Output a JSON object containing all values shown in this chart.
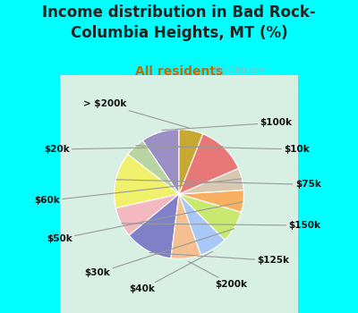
{
  "title": "Income distribution in Bad Rock-\nColumbia Heights, MT (%)",
  "subtitle": "All residents",
  "watermark": "City-Data.com",
  "bg_cyan": "#00FFFF",
  "bg_chart": "#d8efe4",
  "slices": [
    {
      "label": "$100k",
      "value": 9.5,
      "color": "#9b8ec4"
    },
    {
      "label": "$10k",
      "value": 5.0,
      "color": "#b8d4a0"
    },
    {
      "label": "$75k",
      "value": 14.0,
      "color": "#f0f06a"
    },
    {
      "label": "$150k",
      "value": 7.5,
      "color": "#f4b8c0"
    },
    {
      "label": "$125k",
      "value": 12.0,
      "color": "#8080c8"
    },
    {
      "label": "$200k",
      "value": 7.5,
      "color": "#f4c090"
    },
    {
      "label": "$40k",
      "value": 7.0,
      "color": "#a8c8f8"
    },
    {
      "label": "$30k",
      "value": 8.0,
      "color": "#c8e870"
    },
    {
      "label": "$50k",
      "value": 5.5,
      "color": "#f8b060"
    },
    {
      "label": "$60k",
      "value": 5.5,
      "color": "#d8c8b0"
    },
    {
      "label": "$20k",
      "value": 12.5,
      "color": "#e87878"
    },
    {
      "> $200k": "> $200k",
      "label": "> $200k",
      "value": 6.0,
      "color": "#c8a830"
    }
  ],
  "title_fontsize": 12,
  "subtitle_fontsize": 10,
  "label_fontsize": 7.5,
  "title_color": "#222222",
  "subtitle_color": "#cc6600"
}
